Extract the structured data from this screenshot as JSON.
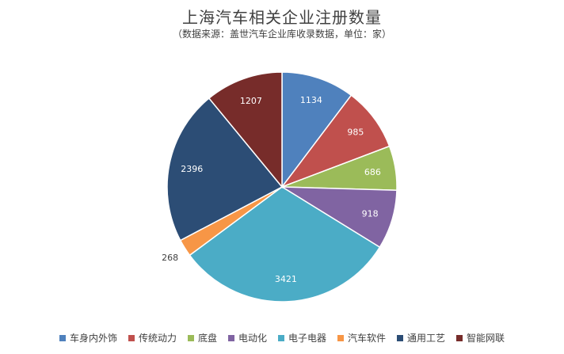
{
  "chart_data": {
    "type": "pie",
    "title": "上海汽车相关企业注册数量",
    "subtitle": "（数据来源：盖世汽车企业库收录数据，单位：家）",
    "categories": [
      "车身内外饰",
      "传统动力",
      "底盘",
      "电动化",
      "电子电器",
      "汽车软件",
      "通用工艺",
      "智能网联"
    ],
    "values": [
      1134,
      985,
      686,
      918,
      3421,
      268,
      2396,
      1207
    ],
    "colors": [
      "#4f81bd",
      "#c0504d",
      "#9bbb59",
      "#8064a2",
      "#4bacc6",
      "#f79646",
      "#2c4d75",
      "#772c2a"
    ],
    "legend_position": "bottom"
  }
}
